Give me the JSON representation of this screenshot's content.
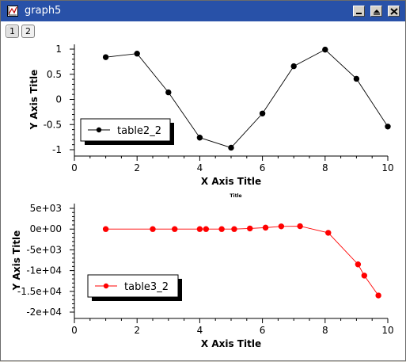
{
  "window": {
    "title": "graph5"
  },
  "tabs": [
    {
      "label": "1"
    },
    {
      "label": "2"
    }
  ],
  "charts": {
    "middle_title": "Title"
  },
  "chart_data": [
    {
      "type": "line",
      "xlabel": "X Axis Title",
      "ylabel": "Y Axis Title",
      "xlim": [
        0,
        10
      ],
      "ylim": [
        -1,
        1
      ],
      "x_ticks": [
        "0",
        "2",
        "4",
        "6",
        "8",
        "10"
      ],
      "y_ticks": [
        "1",
        "0.5",
        "0",
        "-0.5",
        "-1"
      ],
      "legend_position": "bottom-left",
      "series": [
        {
          "name": "table2_2",
          "color": "#000000",
          "x": [
            1,
            2,
            3,
            4,
            5,
            6,
            7,
            8,
            9,
            10
          ],
          "y": [
            0.84,
            0.91,
            0.14,
            -0.76,
            -0.96,
            -0.28,
            0.66,
            0.99,
            0.41,
            -0.54
          ]
        }
      ]
    },
    {
      "type": "line",
      "xlabel": "X Axis Title",
      "ylabel": "Y Axis Title",
      "xlim": [
        0,
        10
      ],
      "ylim": [
        -20000,
        5000
      ],
      "x_ticks": [
        "0",
        "2",
        "4",
        "6",
        "8",
        "10"
      ],
      "y_ticks": [
        "5e+03",
        "0e+00",
        "-5e+03",
        "-1e+04",
        "-1.5e+04",
        "-2e+04"
      ],
      "legend_position": "bottom-left",
      "series": [
        {
          "name": "table3_2",
          "color": "#ff0000",
          "x": [
            1.0,
            2.5,
            3.2,
            4.0,
            4.2,
            4.7,
            5.1,
            5.6,
            6.1,
            6.6,
            7.2,
            8.1,
            9.05,
            9.25,
            9.7
          ],
          "y": [
            0,
            0,
            0,
            0,
            0,
            0,
            0,
            150,
            350,
            650,
            700,
            -900,
            -8500,
            -11200,
            -16000
          ]
        }
      ]
    }
  ]
}
